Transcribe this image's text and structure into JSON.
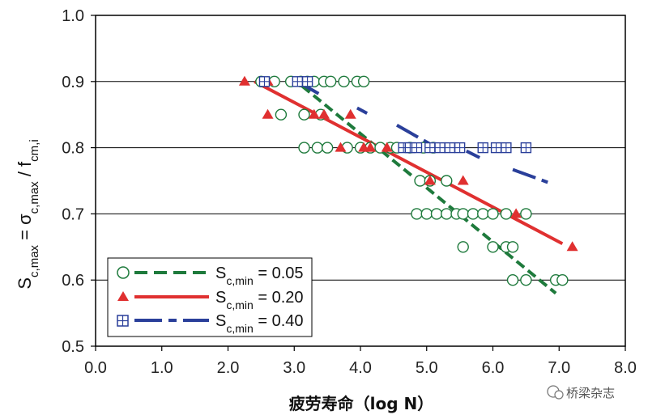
{
  "chart_data": {
    "type": "scatter",
    "xlabel": "疲劳寿命（log N）",
    "ylabel": {
      "base": "S",
      "sub1": "c,max",
      "mid": " = σ",
      "sub2": "c,max",
      "mid2": " / f",
      "sub3": "cm,i"
    },
    "xlim": [
      0.0,
      8.0
    ],
    "ylim": [
      0.5,
      1.0
    ],
    "xticks": [
      "0.0",
      "1.0",
      "2.0",
      "3.0",
      "4.0",
      "5.0",
      "6.0",
      "7.0",
      "8.0"
    ],
    "yticks": [
      "0.5",
      "0.6",
      "0.7",
      "0.8",
      "0.9",
      "1.0"
    ],
    "grid_y": [
      0.6,
      0.7,
      0.8,
      0.9,
      1.0
    ],
    "legend_position": "bottom-left",
    "series": [
      {
        "name": "Sc,min = 0.05",
        "legend": {
          "base": "S",
          "sub": "c,min",
          "value": " = 0.05"
        },
        "marker": "circle",
        "color": "#1e7a3c",
        "line_style": "dashed",
        "points": [
          [
            2.5,
            0.9
          ],
          [
            2.7,
            0.9
          ],
          [
            2.95,
            0.9
          ],
          [
            3.1,
            0.9
          ],
          [
            3.2,
            0.9
          ],
          [
            3.3,
            0.9
          ],
          [
            3.45,
            0.9
          ],
          [
            3.55,
            0.9
          ],
          [
            3.75,
            0.9
          ],
          [
            3.95,
            0.9
          ],
          [
            4.05,
            0.9
          ],
          [
            2.8,
            0.85
          ],
          [
            3.15,
            0.85
          ],
          [
            3.4,
            0.85
          ],
          [
            3.15,
            0.8
          ],
          [
            3.35,
            0.8
          ],
          [
            3.5,
            0.8
          ],
          [
            3.8,
            0.8
          ],
          [
            4.0,
            0.8
          ],
          [
            4.15,
            0.8
          ],
          [
            4.3,
            0.8
          ],
          [
            4.45,
            0.8
          ],
          [
            4.55,
            0.8
          ],
          [
            4.75,
            0.8
          ],
          [
            4.95,
            0.8
          ],
          [
            5.1,
            0.8
          ],
          [
            4.9,
            0.75
          ],
          [
            5.05,
            0.75
          ],
          [
            5.3,
            0.75
          ],
          [
            4.85,
            0.7
          ],
          [
            5.0,
            0.7
          ],
          [
            5.15,
            0.7
          ],
          [
            5.3,
            0.7
          ],
          [
            5.45,
            0.7
          ],
          [
            5.55,
            0.7
          ],
          [
            5.7,
            0.7
          ],
          [
            5.85,
            0.7
          ],
          [
            6.0,
            0.7
          ],
          [
            6.2,
            0.7
          ],
          [
            6.5,
            0.7
          ],
          [
            5.55,
            0.65
          ],
          [
            6.0,
            0.65
          ],
          [
            6.2,
            0.65
          ],
          [
            6.3,
            0.65
          ],
          [
            6.3,
            0.6
          ],
          [
            6.5,
            0.6
          ],
          [
            6.95,
            0.6
          ],
          [
            7.05,
            0.6
          ]
        ],
        "fit": {
          "x": [
            2.95,
            6.95
          ],
          "y": [
            0.907,
            0.58
          ]
        }
      },
      {
        "name": "Sc,min = 0.20",
        "legend": {
          "base": "S",
          "sub": "c,min",
          "value": " = 0.20"
        },
        "marker": "triangle",
        "color": "#e03030",
        "line_style": "solid",
        "points": [
          [
            2.25,
            0.9
          ],
          [
            2.6,
            0.9
          ],
          [
            3.05,
            0.9
          ],
          [
            2.6,
            0.85
          ],
          [
            3.3,
            0.85
          ],
          [
            3.45,
            0.85
          ],
          [
            3.85,
            0.85
          ],
          [
            3.7,
            0.8
          ],
          [
            4.05,
            0.8
          ],
          [
            4.15,
            0.8
          ],
          [
            4.4,
            0.8
          ],
          [
            5.05,
            0.75
          ],
          [
            5.55,
            0.75
          ],
          [
            6.35,
            0.7
          ],
          [
            7.2,
            0.65
          ]
        ],
        "fit": {
          "x": [
            2.4,
            7.05
          ],
          "y": [
            0.9,
            0.655
          ]
        }
      },
      {
        "name": "Sc,min = 0.40",
        "legend": {
          "base": "S",
          "sub": "c,min",
          "value": " = 0.40"
        },
        "marker": "square",
        "color": "#2a3f9a",
        "line_style": "dashdot",
        "points": [
          [
            2.55,
            0.9
          ],
          [
            3.05,
            0.9
          ],
          [
            3.2,
            0.9
          ],
          [
            4.65,
            0.8
          ],
          [
            4.75,
            0.8
          ],
          [
            4.85,
            0.8
          ],
          [
            5.05,
            0.8
          ],
          [
            5.2,
            0.8
          ],
          [
            5.35,
            0.8
          ],
          [
            5.5,
            0.8
          ],
          [
            5.85,
            0.8
          ],
          [
            6.05,
            0.8
          ],
          [
            6.2,
            0.8
          ],
          [
            6.5,
            0.8
          ]
        ],
        "fit_segments": [
          {
            "x": [
              3.05,
              3.45
            ],
            "y": [
              0.9,
              0.877
            ]
          },
          {
            "x": [
              3.95,
              4.1
            ],
            "y": [
              0.86,
              0.852
            ]
          },
          {
            "x": [
              4.55,
              5.15
            ],
            "y": [
              0.834,
              0.8
            ]
          },
          {
            "x": [
              5.6,
              5.8
            ],
            "y": [
              0.795,
              0.785
            ]
          },
          {
            "x": [
              6.3,
              6.9
            ],
            "y": [
              0.767,
              0.745
            ]
          }
        ]
      }
    ]
  },
  "watermark": "桥梁杂志"
}
